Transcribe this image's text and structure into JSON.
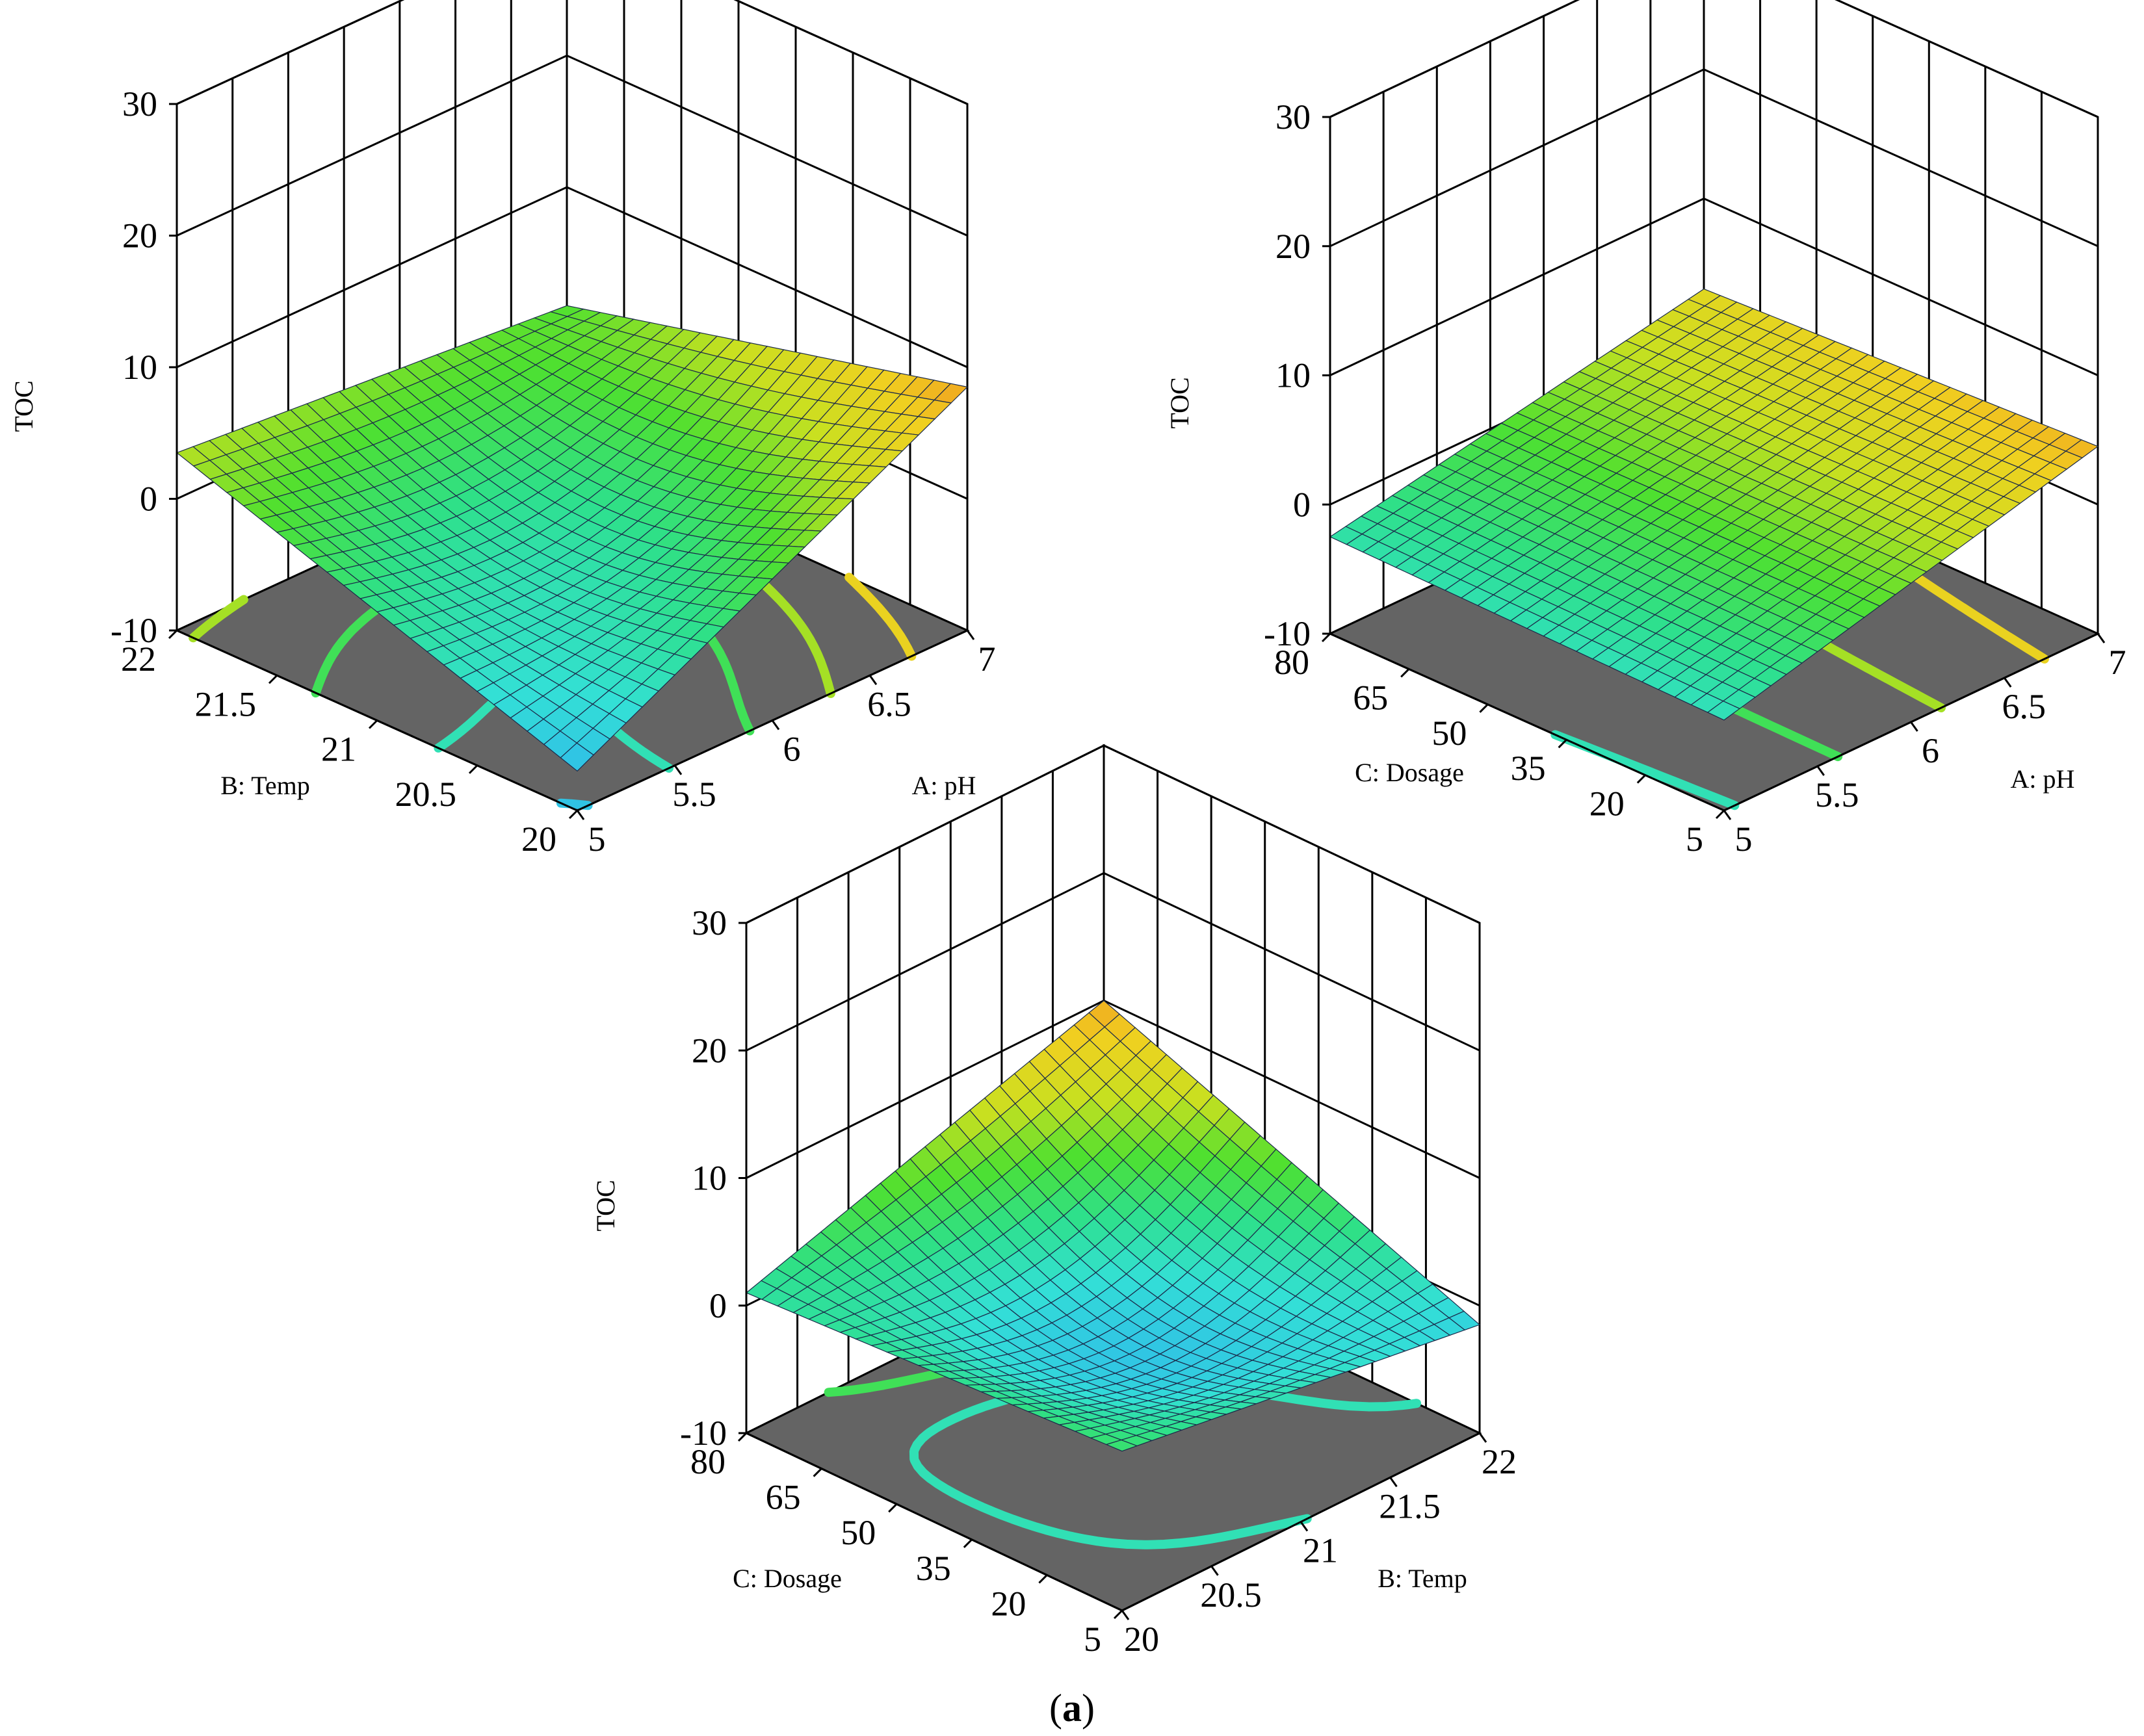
{
  "caption": {
    "open": "(",
    "letter": "a",
    "close": ")"
  },
  "colors": {
    "floor": "#646464",
    "frame": "#000000",
    "colormap": [
      "#2a2bd0",
      "#1d6fe6",
      "#2fb8ea",
      "#33e0d6",
      "#2ee08a",
      "#4ee030",
      "#c8e020",
      "#f0d020",
      "#f08a20"
    ]
  },
  "chart_data": [
    {
      "type": "surface3d",
      "zlabel": "TOC",
      "xlabel": "A: pH",
      "ylabel": "B: Temp",
      "zlim": [
        -10,
        30
      ],
      "zticks": [
        "30",
        "20",
        "10",
        "0",
        "-10"
      ],
      "xlim": [
        5,
        7
      ],
      "xticks": [
        "5",
        "5.5",
        "6",
        "6.5",
        "7"
      ],
      "ylim": [
        20,
        22
      ],
      "yticks": [
        "20",
        "20.5",
        "21",
        "21.5",
        "22"
      ],
      "grid": true,
      "contour_floor": true,
      "z_corners": {
        "x_min_y_min": -7,
        "x_max_y_min": 8.5,
        "x_min_y_max": 3.5,
        "x_max_y_max": 1
      },
      "surface_shape": "saddle"
    },
    {
      "type": "surface3d",
      "zlabel": "TOC",
      "xlabel": "A: pH",
      "ylabel": "C: Dosage",
      "zlim": [
        -10,
        30
      ],
      "zticks": [
        "30",
        "20",
        "10",
        "0",
        "-10"
      ],
      "xlim": [
        5,
        7
      ],
      "xticks": [
        "5",
        "5.5",
        "6",
        "6.5",
        "7"
      ],
      "ylim": [
        5,
        80
      ],
      "yticks": [
        "5",
        "20",
        "35",
        "50",
        "65",
        "80"
      ],
      "grid": true,
      "contour_floor": true,
      "z_corners": {
        "x_min_y_min": -3,
        "x_max_y_min": 4.5,
        "x_min_y_max": -2.5,
        "x_max_y_max": 3
      },
      "surface_shape": "plane"
    },
    {
      "type": "surface3d",
      "zlabel": "TOC",
      "xlabel": "B: Temp",
      "ylabel": "C: Dosage",
      "zlim": [
        -10,
        30
      ],
      "zticks": [
        "30",
        "20",
        "10",
        "0",
        "-10"
      ],
      "xlim": [
        20,
        22
      ],
      "xticks": [
        "20",
        "20.5",
        "21",
        "21.5",
        "22"
      ],
      "ylim": [
        5,
        80
      ],
      "yticks": [
        "5",
        "20",
        "35",
        "50",
        "65",
        "80"
      ],
      "grid": true,
      "contour_floor": true,
      "z_corners": {
        "x_min_y_min": 2.5,
        "x_max_y_min": -1.5,
        "x_min_y_max": 1,
        "x_max_y_max": 10
      },
      "surface_shape": "saddle"
    }
  ]
}
